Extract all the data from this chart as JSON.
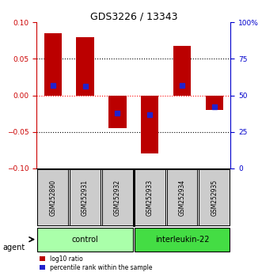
{
  "title": "GDS3226 / 13343",
  "samples": [
    "GSM252890",
    "GSM252931",
    "GSM252932",
    "GSM252933",
    "GSM252934",
    "GSM252935"
  ],
  "log10_ratio": [
    0.085,
    0.08,
    -0.045,
    -0.08,
    0.068,
    -0.02
  ],
  "percentile_rank": [
    57,
    56,
    38,
    37,
    57,
    42
  ],
  "ylim_left": [
    -0.1,
    0.1
  ],
  "ylim_right": [
    0,
    100
  ],
  "yticks_left": [
    -0.1,
    -0.05,
    0,
    0.05,
    0.1
  ],
  "yticks_right": [
    0,
    25,
    50,
    75,
    100
  ],
  "ytick_labels_right": [
    "0",
    "25",
    "50",
    "75",
    "100%"
  ],
  "bar_color": "#bb0000",
  "blue_color": "#2222cc",
  "groups": [
    {
      "label": "control",
      "indices": [
        0,
        1,
        2
      ],
      "color": "#aaffaa"
    },
    {
      "label": "interleukin-22",
      "indices": [
        3,
        4,
        5
      ],
      "color": "#44dd44"
    }
  ],
  "legend_red_label": "log10 ratio",
  "legend_blue_label": "percentile rank within the sample",
  "agent_label": "agent",
  "title_color": "#000000",
  "left_axis_color": "#cc0000",
  "right_axis_color": "#0000cc",
  "bar_width": 0.55,
  "sample_box_color": "#cccccc",
  "plot_bg": "#ffffff"
}
